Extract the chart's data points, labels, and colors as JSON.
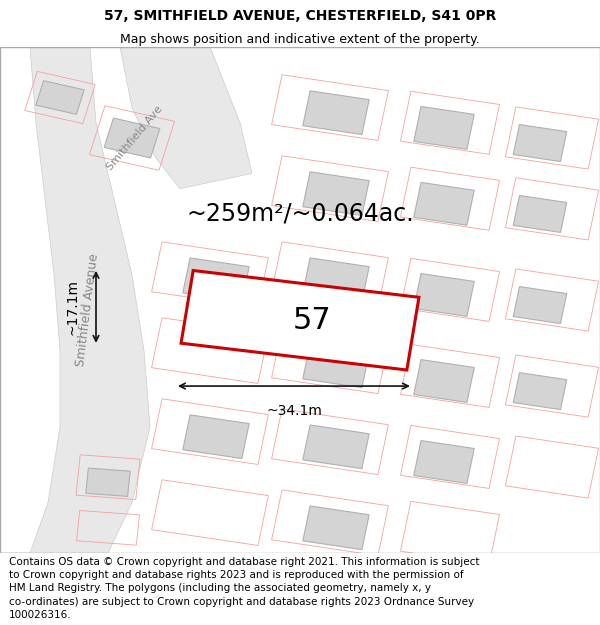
{
  "title_line1": "57, SMITHFIELD AVENUE, CHESTERFIELD, S41 0PR",
  "title_line2": "Map shows position and indicative extent of the property.",
  "footer_lines": [
    "Contains OS data © Crown copyright and database right 2021. This information is subject",
    "to Crown copyright and database rights 2023 and is reproduced with the permission of",
    "HM Land Registry. The polygons (including the associated geometry, namely x, y",
    "co-ordinates) are subject to Crown copyright and database rights 2023 Ordnance Survey",
    "100026316."
  ],
  "area_text": "~259m²/~0.064ac.",
  "plot_number": "57",
  "dim_width": "~34.1m",
  "dim_height": "~17.1m",
  "road_label_main": "Smithfield Avenue",
  "road_label_top": "Smithfield Ave",
  "map_bg": "#ffffff",
  "plot_edge": "#cc0000",
  "dim_line_color": "#111111",
  "title_fontsize": 10,
  "footer_fontsize": 7.5,
  "area_fontsize": 17,
  "plot_num_fontsize": 22,
  "dim_fontsize": 10,
  "road_label_fontsize": 9,
  "road_fill": "#e8e8e8",
  "road_edge": "#cccccc",
  "building_fill": "#d4d4d4",
  "building_edge": "#b0b0b0",
  "plot_outline_color": "#f5a0a0"
}
